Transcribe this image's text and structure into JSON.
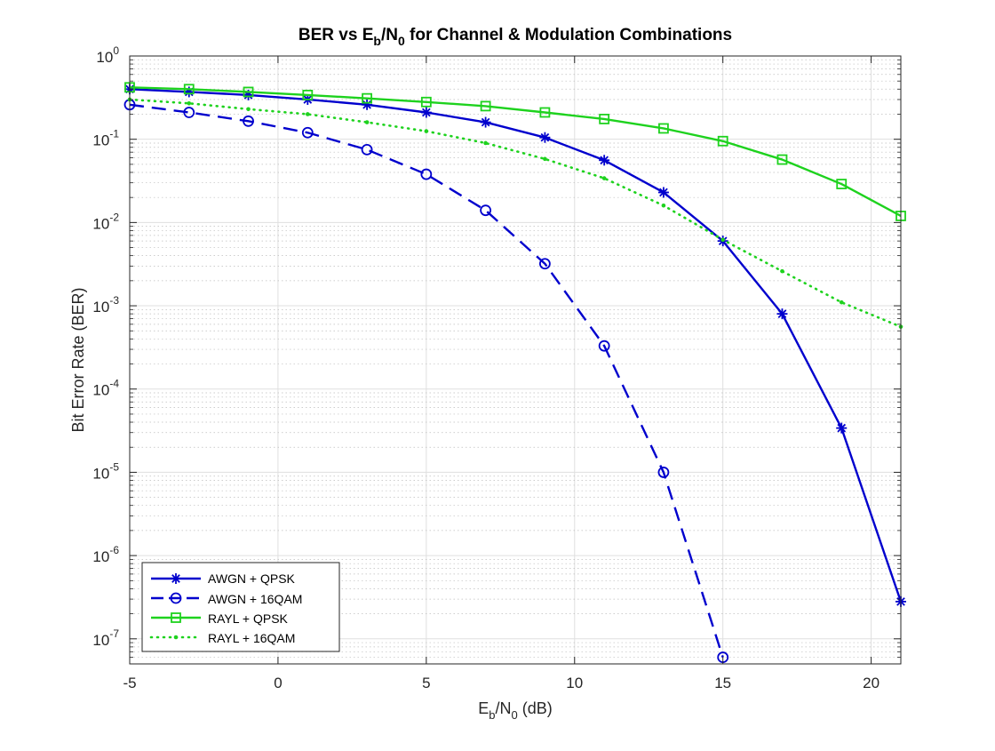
{
  "chart_data": {
    "type": "line",
    "title_parts": {
      "pre": "BER vs E",
      "sub1": "b",
      "mid": "/N",
      "sub2": "0",
      "post": " for Channel & Modulation Combinations"
    },
    "xlabel_parts": {
      "pre": "E",
      "sub1": "b",
      "mid": "/N",
      "sub2": "0",
      "post": " (dB)"
    },
    "ylabel": "Bit Error Rate (BER)",
    "xscale": "linear",
    "yscale": "log",
    "xlim": [
      -5,
      21
    ],
    "ylim": [
      5e-08,
      1
    ],
    "xticks": [
      -5,
      0,
      5,
      10,
      15,
      20
    ],
    "xtick_labels": [
      "-5",
      "0",
      "5",
      "10",
      "15",
      "20"
    ],
    "yticks": [
      {
        "value": 1e-07,
        "base": "10",
        "exp": "-7"
      },
      {
        "value": 1e-06,
        "base": "10",
        "exp": "-6"
      },
      {
        "value": 1e-05,
        "base": "10",
        "exp": "-5"
      },
      {
        "value": 0.0001,
        "base": "10",
        "exp": "-4"
      },
      {
        "value": 0.001,
        "base": "10",
        "exp": "-3"
      },
      {
        "value": 0.01,
        "base": "10",
        "exp": "-2"
      },
      {
        "value": 0.1,
        "base": "10",
        "exp": "-1"
      },
      {
        "value": 1,
        "base": "10",
        "exp": "0"
      }
    ],
    "grid": true,
    "minor_grid": true,
    "legend_location": "bottom-left",
    "x": [
      -5,
      -3,
      -1,
      1,
      3,
      5,
      7,
      9,
      11,
      13,
      15,
      17,
      19,
      21
    ],
    "series": [
      {
        "name": "AWGN + QPSK",
        "color": "#0000cd",
        "line": "solid",
        "marker": "asterisk",
        "x": [
          -5,
          -3,
          -1,
          1,
          3,
          5,
          7,
          9,
          11,
          13,
          15,
          17,
          19,
          21
        ],
        "values": [
          0.4,
          0.37,
          0.34,
          0.3,
          0.26,
          0.21,
          0.16,
          0.105,
          0.056,
          0.023,
          0.006,
          0.0008,
          3.4e-05,
          2.8e-07
        ]
      },
      {
        "name": "AWGN + 16QAM",
        "color": "#0000cd",
        "line": "dashed",
        "marker": "circle",
        "x": [
          -5,
          -3,
          -1,
          1,
          3,
          5,
          7,
          9,
          11,
          13,
          15
        ],
        "values": [
          0.26,
          0.21,
          0.165,
          0.12,
          0.075,
          0.038,
          0.014,
          0.0032,
          0.00033,
          1e-05,
          6e-08
        ]
      },
      {
        "name": "RAYL + QPSK",
        "color": "#1ed21e",
        "line": "solid",
        "marker": "square",
        "x": [
          -5,
          -3,
          -1,
          1,
          3,
          5,
          7,
          9,
          11,
          13,
          15,
          17,
          19,
          21
        ],
        "values": [
          0.42,
          0.4,
          0.37,
          0.34,
          0.31,
          0.28,
          0.25,
          0.21,
          0.175,
          0.135,
          0.095,
          0.057,
          0.029,
          0.012
        ]
      },
      {
        "name": "RAYL + 16QAM",
        "color": "#1ed21e",
        "line": "dotted",
        "marker": "point",
        "x": [
          -5,
          -3,
          -1,
          1,
          3,
          5,
          7,
          9,
          11,
          13,
          15,
          17,
          19,
          21
        ],
        "values": [
          0.3,
          0.27,
          0.23,
          0.2,
          0.16,
          0.125,
          0.09,
          0.058,
          0.034,
          0.016,
          0.0062,
          0.0026,
          0.0011,
          0.00056
        ]
      }
    ]
  }
}
